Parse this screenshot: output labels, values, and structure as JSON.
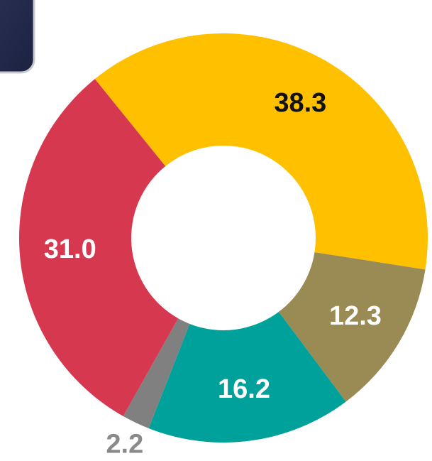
{
  "chart_data": {
    "type": "donut",
    "categories": [
      null,
      null,
      null,
      null,
      null
    ],
    "values": [
      38.3,
      12.3,
      16.2,
      2.2,
      31.0
    ],
    "value_labels": [
      "38.3",
      "12.3",
      "16.2",
      "2.2",
      "31.0"
    ],
    "colors": [
      "#FFC000",
      "#9A8B54",
      "#00A19A",
      "#808080",
      "#D63850"
    ],
    "label_colors": [
      "#111111",
      "#ffffff",
      "#ffffff",
      "#8a8a8a",
      "#ffffff"
    ]
  }
}
